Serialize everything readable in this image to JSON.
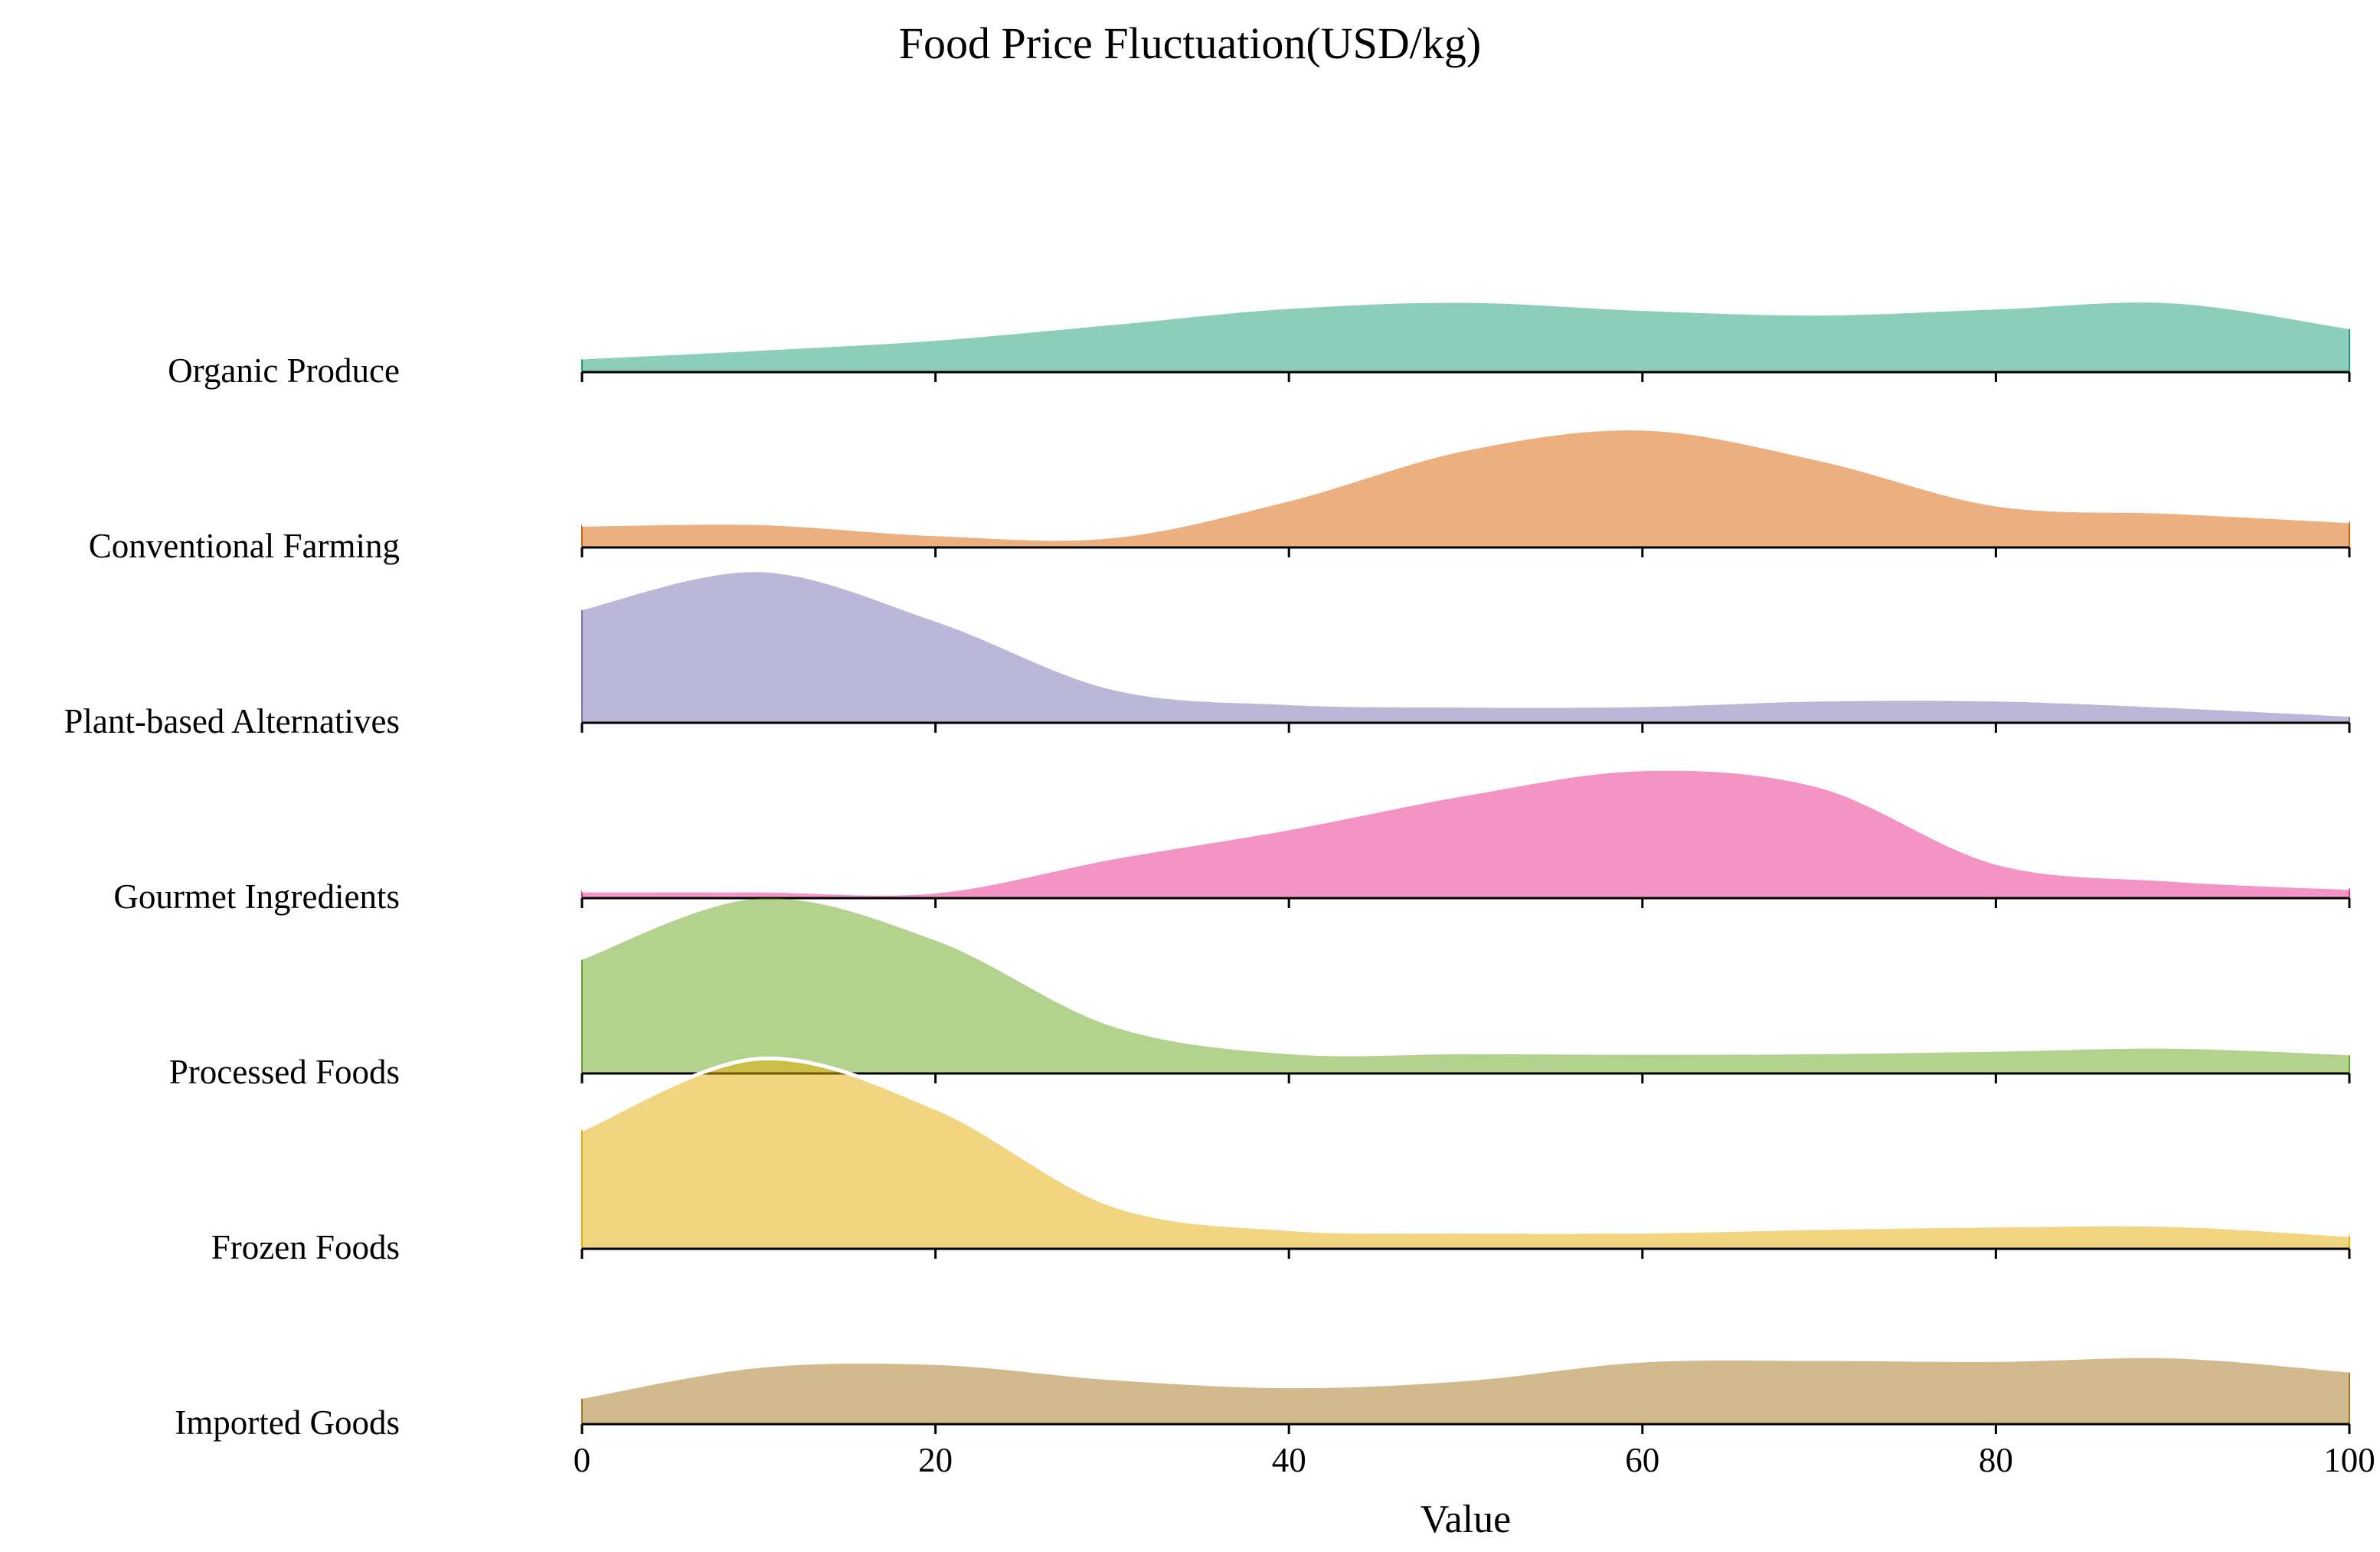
{
  "chart_data": {
    "type": "ridgeline",
    "title": "Food Price Fluctuation(USD/kg)",
    "xlabel": "Value",
    "ylabel": "",
    "xlim": [
      0,
      100
    ],
    "xticks": [
      0,
      20,
      40,
      60,
      80,
      100
    ],
    "grid": false,
    "legend": "none",
    "x": [
      0,
      10,
      20,
      30,
      40,
      50,
      60,
      70,
      80,
      90,
      100
    ],
    "series": [
      {
        "name": "Organic Produce",
        "color": "#1b9e77",
        "values": [
          0.25,
          0.42,
          0.62,
          0.93,
          1.25,
          1.37,
          1.21,
          1.12,
          1.24,
          1.36,
          0.85
        ],
        "outline": false
      },
      {
        "name": "Conventional Farming",
        "color": "#d95f02",
        "values": [
          0.45,
          0.48,
          0.26,
          0.22,
          0.95,
          1.95,
          2.35,
          1.75,
          0.85,
          0.7,
          0.52
        ],
        "outline": true
      },
      {
        "name": "Plant-based Alternatives",
        "color": "#7570b3",
        "values": [
          2.23,
          2.98,
          2.0,
          0.65,
          0.35,
          0.3,
          0.31,
          0.42,
          0.42,
          0.29,
          0.12
        ],
        "outline": false
      },
      {
        "name": "Gourmet Ingredients",
        "color": "#e7298a",
        "values": [
          0.15,
          0.15,
          0.13,
          0.8,
          1.38,
          2.06,
          2.55,
          2.22,
          0.7,
          0.36,
          0.2
        ],
        "outline": true
      },
      {
        "name": "Processed Foods",
        "color": "#66a61e",
        "values": [
          2.25,
          3.46,
          2.63,
          0.93,
          0.38,
          0.38,
          0.37,
          0.38,
          0.43,
          0.49,
          0.36
        ],
        "outline": false
      },
      {
        "name": "Frozen Foods",
        "color": "#e6ab02",
        "values": [
          2.36,
          3.76,
          2.79,
          0.87,
          0.39,
          0.34,
          0.34,
          0.41,
          0.46,
          0.47,
          0.27
        ],
        "outline": true
      },
      {
        "name": "Imported Goods",
        "color": "#a6761d",
        "values": [
          0.5,
          1.11,
          1.17,
          0.87,
          0.71,
          0.85,
          1.22,
          1.25,
          1.23,
          1.3,
          1.02
        ],
        "outline": false
      }
    ]
  }
}
